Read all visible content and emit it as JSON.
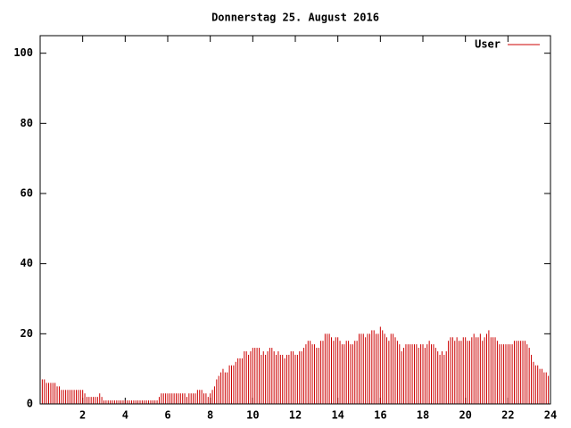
{
  "chart_data": {
    "type": "impulses",
    "title": "Donnerstag 25. August 2016",
    "x": [
      0,
      0.1,
      0.2,
      0.3,
      0.4,
      0.5,
      0.6,
      0.7,
      0.8,
      0.9,
      1,
      1.1,
      1.2,
      1.3,
      1.4,
      1.5,
      1.6,
      1.7,
      1.8,
      1.9,
      2,
      2.1,
      2.2,
      2.3,
      2.4,
      2.5,
      2.6,
      2.7,
      2.8,
      2.9,
      3,
      3.1,
      3.2,
      3.3,
      3.4,
      3.5,
      3.6,
      3.7,
      3.8,
      3.9,
      4,
      4.1,
      4.2,
      4.3,
      4.4,
      4.5,
      4.6,
      4.7,
      4.8,
      4.9,
      5,
      5.1,
      5.2,
      5.3,
      5.4,
      5.5,
      5.6,
      5.7,
      5.8,
      5.9,
      6,
      6.1,
      6.2,
      6.3,
      6.4,
      6.5,
      6.6,
      6.7,
      6.8,
      6.9,
      7,
      7.1,
      7.2,
      7.3,
      7.4,
      7.5,
      7.6,
      7.7,
      7.8,
      7.9,
      8,
      8.1,
      8.2,
      8.3,
      8.4,
      8.5,
      8.6,
      8.7,
      8.8,
      8.9,
      9,
      9.1,
      9.2,
      9.3,
      9.4,
      9.5,
      9.6,
      9.7,
      9.8,
      9.9,
      10,
      10.1,
      10.2,
      10.3,
      10.4,
      10.5,
      10.6,
      10.7,
      10.8,
      10.9,
      11,
      11.1,
      11.2,
      11.3,
      11.4,
      11.5,
      11.6,
      11.7,
      11.8,
      11.9,
      12,
      12.1,
      12.2,
      12.3,
      12.4,
      12.5,
      12.6,
      12.7,
      12.8,
      12.9,
      13,
      13.1,
      13.2,
      13.3,
      13.4,
      13.5,
      13.6,
      13.7,
      13.8,
      13.9,
      14,
      14.1,
      14.2,
      14.3,
      14.4,
      14.5,
      14.6,
      14.7,
      14.8,
      14.9,
      15,
      15.1,
      15.2,
      15.3,
      15.4,
      15.5,
      15.6,
      15.7,
      15.8,
      15.9,
      16,
      16.1,
      16.2,
      16.3,
      16.4,
      16.5,
      16.6,
      16.7,
      16.8,
      16.9,
      17,
      17.1,
      17.2,
      17.3,
      17.4,
      17.5,
      17.6,
      17.7,
      17.8,
      17.9,
      18,
      18.1,
      18.2,
      18.3,
      18.4,
      18.5,
      18.6,
      18.7,
      18.8,
      18.9,
      19,
      19.1,
      19.2,
      19.3,
      19.4,
      19.5,
      19.6,
      19.7,
      19.8,
      19.9,
      20,
      20.1,
      20.2,
      20.3,
      20.4,
      20.5,
      20.6,
      20.7,
      20.8,
      20.9,
      21,
      21.1,
      21.2,
      21.3,
      21.4,
      21.5,
      21.6,
      21.7,
      21.8,
      21.9,
      22,
      22.1,
      22.2,
      22.3,
      22.4,
      22.5,
      22.6,
      22.7,
      22.8,
      22.9,
      23,
      23.1,
      23.2,
      23.3,
      23.4,
      23.5,
      23.6,
      23.7,
      23.8,
      23.9
    ],
    "series": [
      {
        "name": "User",
        "color": "#cc0000",
        "values": [
          7,
          7,
          7,
          6,
          6,
          6,
          6,
          6,
          5,
          5,
          4,
          4,
          4,
          4,
          4,
          4,
          4,
          4,
          4,
          4,
          4,
          3,
          2,
          2,
          2,
          2,
          2,
          2,
          3,
          2,
          1,
          1,
          1,
          1,
          1,
          1,
          1,
          1,
          1,
          1,
          1,
          1,
          1,
          1,
          1,
          1,
          1,
          1,
          1,
          1,
          1,
          1,
          1,
          1,
          1,
          1,
          2,
          3,
          3,
          3,
          3,
          3,
          3,
          3,
          3,
          3,
          3,
          3,
          3,
          2,
          3,
          3,
          3,
          3,
          4,
          4,
          4,
          3,
          3,
          2,
          3,
          4,
          5,
          7,
          8,
          9,
          10,
          9,
          9,
          11,
          11,
          11,
          12,
          13,
          13,
          13,
          15,
          15,
          14,
          15,
          16,
          16,
          16,
          16,
          14,
          15,
          14,
          15,
          16,
          16,
          15,
          14,
          15,
          14,
          14,
          13,
          14,
          14,
          15,
          15,
          14,
          14,
          15,
          15,
          16,
          17,
          18,
          18,
          17,
          17,
          16,
          16,
          18,
          18,
          20,
          20,
          20,
          19,
          18,
          19,
          19,
          18,
          17,
          17,
          18,
          18,
          17,
          17,
          18,
          18,
          20,
          20,
          20,
          19,
          20,
          20,
          21,
          21,
          20,
          20,
          22,
          21,
          20,
          19,
          18,
          20,
          20,
          19,
          18,
          17,
          15,
          16,
          17,
          17,
          17,
          17,
          17,
          17,
          16,
          17,
          17,
          16,
          17,
          18,
          17,
          17,
          16,
          15,
          14,
          15,
          14,
          15,
          18,
          19,
          19,
          18,
          19,
          18,
          18,
          19,
          19,
          18,
          18,
          19,
          20,
          19,
          19,
          20,
          18,
          19,
          20,
          21,
          19,
          19,
          19,
          18,
          17,
          17,
          17,
          17,
          17,
          17,
          17,
          18,
          18,
          18,
          18,
          18,
          18,
          17,
          16,
          14,
          12,
          11,
          11,
          10,
          10,
          9,
          9,
          8
        ]
      }
    ],
    "xlim": [
      0,
      24
    ],
    "xticks": [
      2,
      4,
      6,
      8,
      10,
      12,
      14,
      16,
      18,
      20,
      22,
      24
    ],
    "ylim": [
      0,
      105
    ],
    "yticks": [
      0,
      20,
      40,
      60,
      80,
      100
    ],
    "legend": "top-right"
  }
}
